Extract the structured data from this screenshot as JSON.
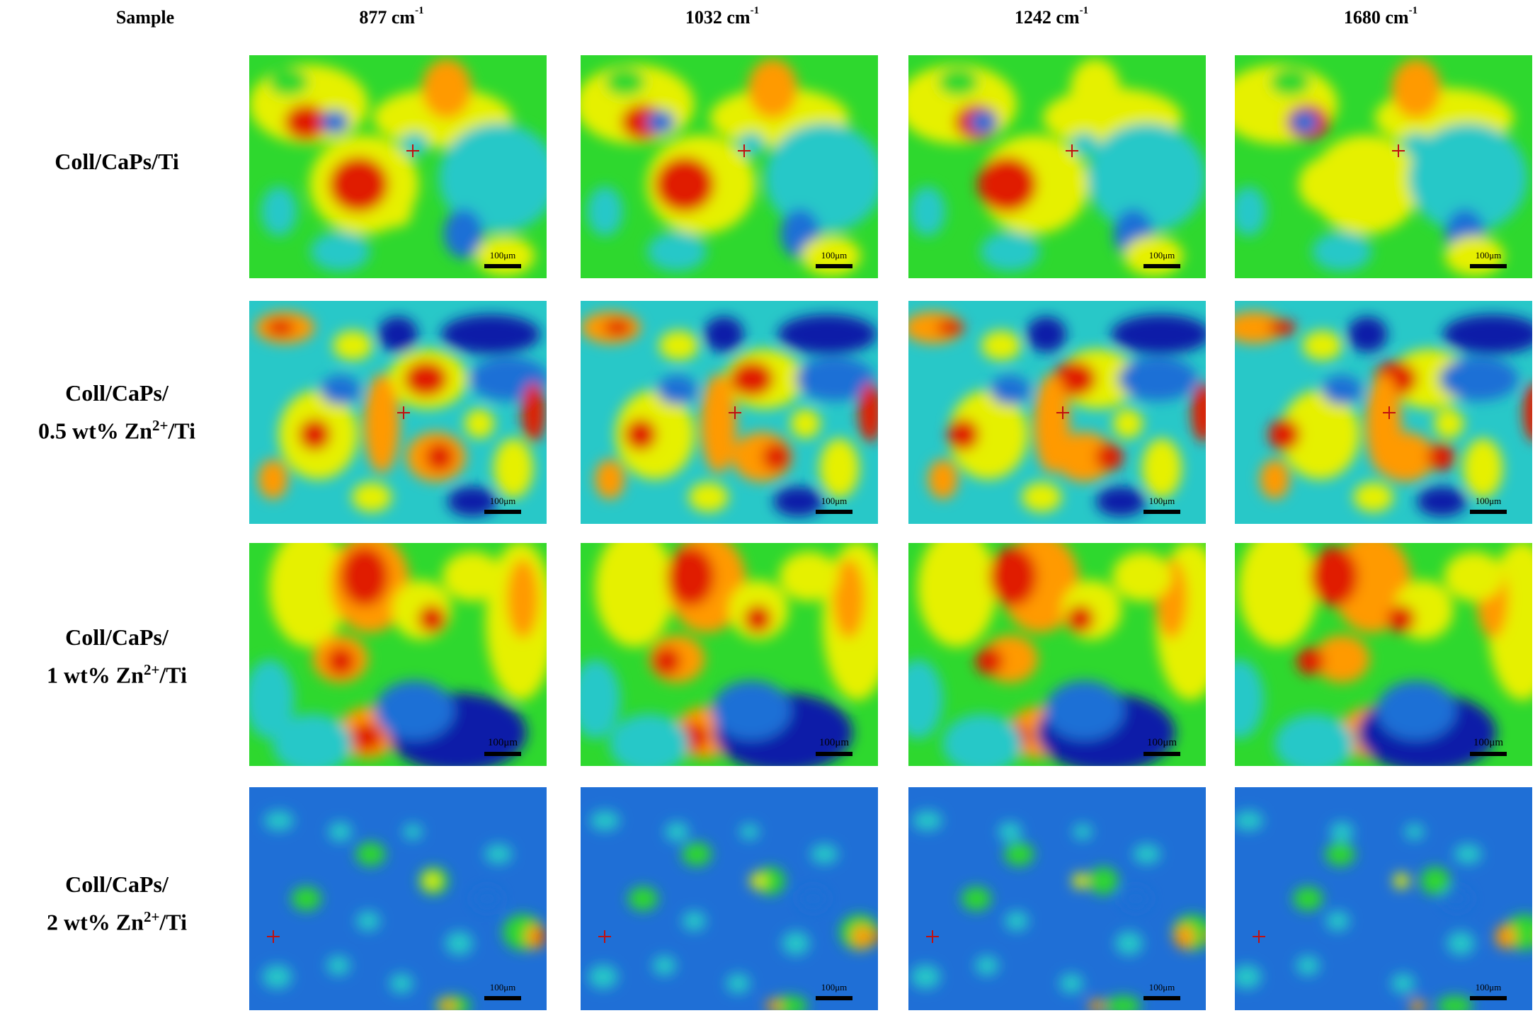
{
  "header": {
    "sample_label": "Sample",
    "columns": [
      {
        "value": "877",
        "unit": "cm",
        "exp": "-1"
      },
      {
        "value": "1032",
        "unit": "cm",
        "exp": "-1"
      },
      {
        "value": "1242",
        "unit": "cm",
        "exp": "-1"
      },
      {
        "value": "1680",
        "unit": "cm",
        "exp": "-1"
      }
    ]
  },
  "rows": [
    {
      "line1": "Coll/CaPs/Ti",
      "line2": "",
      "ion_sup": "",
      "suffix": ""
    },
    {
      "line1": "Coll/CaPs/",
      "line2": "0.5 wt% Zn",
      "ion_sup": "2+",
      "suffix": "/Ti"
    },
    {
      "line1": "Coll/CaPs/",
      "line2": "1 wt% Zn",
      "ion_sup": "2+",
      "suffix": "/Ti"
    },
    {
      "line1": "Coll/CaPs/",
      "line2": "2 wt% Zn",
      "ion_sup": "2+",
      "suffix": "/Ti"
    }
  ],
  "scale_bar_label": "100μm",
  "colormap": [
    "#0a1ea8",
    "#1f6fd6",
    "#28c8c8",
    "#2ed82e",
    "#e6f000",
    "#ff9a00",
    "#e01a00"
  ]
}
